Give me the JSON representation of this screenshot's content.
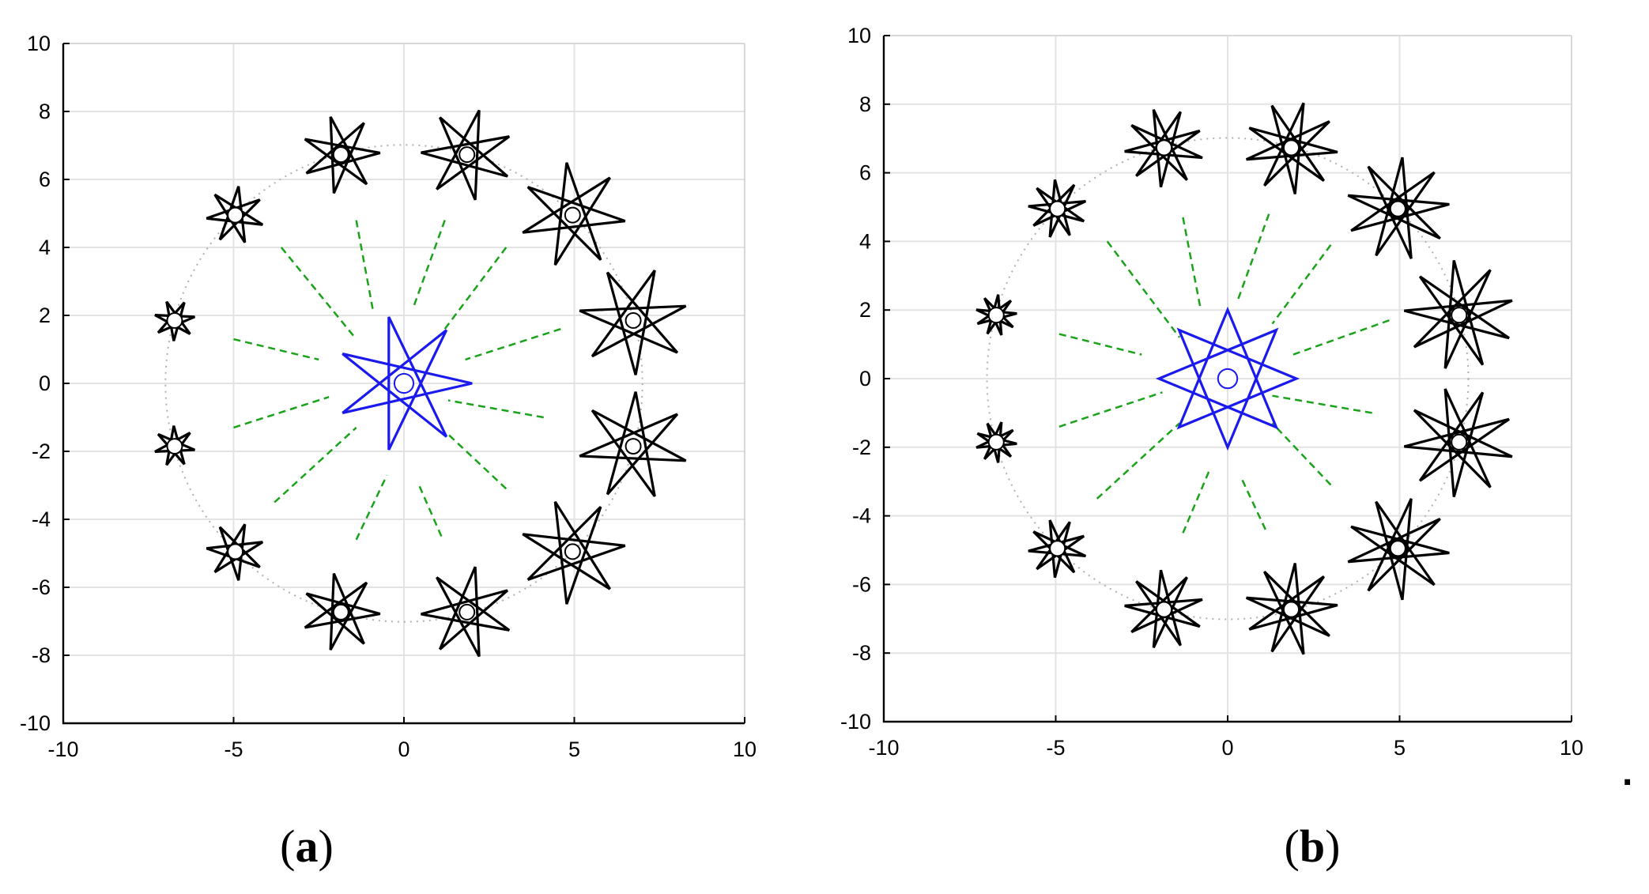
{
  "chart_data": [
    {
      "type": "scatter",
      "panel_label": "a",
      "xlim": [
        -10,
        10
      ],
      "ylim": [
        -10,
        10
      ],
      "x_ticks": [
        -10,
        -5,
        0,
        5,
        10
      ],
      "y_ticks": [
        -10,
        -8,
        -6,
        -4,
        -2,
        0,
        2,
        4,
        6,
        8,
        10
      ],
      "grid": true,
      "reference_circle": {
        "cx": 0,
        "cy": 0,
        "r": 7,
        "style": "dotted",
        "color": "#b0b0b0"
      },
      "center_star": {
        "x": 0,
        "y": 0,
        "points": 7,
        "skip": 3,
        "outer_r": 2.0,
        "rotation_deg": 0,
        "color": "#1a1aee"
      },
      "ring_stars": {
        "points": 7,
        "skip": 3,
        "color": "#000000",
        "hub_r": 0.22,
        "items": [
          {
            "x": 6.73,
            "y": 1.85,
            "r": 1.6
          },
          {
            "x": 4.95,
            "y": 4.95,
            "r": 1.55
          },
          {
            "x": 1.85,
            "y": 6.73,
            "r": 1.35
          },
          {
            "x": -1.85,
            "y": 6.73,
            "r": 1.15
          },
          {
            "x": -4.95,
            "y": 4.95,
            "r": 0.85
          },
          {
            "x": -6.73,
            "y": 1.85,
            "r": 0.6
          },
          {
            "x": -6.73,
            "y": -1.85,
            "r": 0.6
          },
          {
            "x": -4.95,
            "y": -4.95,
            "r": 0.85
          },
          {
            "x": -1.85,
            "y": -6.73,
            "r": 1.15
          },
          {
            "x": 1.85,
            "y": -6.73,
            "r": 1.35
          },
          {
            "x": 4.95,
            "y": -4.95,
            "r": 1.55
          },
          {
            "x": 6.73,
            "y": -1.85,
            "r": 1.6
          }
        ]
      },
      "green_rays": {
        "color": "#1aa31a",
        "style": "dashed",
        "segments": [
          [
            [
              4.6,
              1.6
            ],
            [
              1.8,
              0.7
            ]
          ],
          [
            [
              3.0,
              4.0
            ],
            [
              1.2,
              1.6
            ]
          ],
          [
            [
              1.2,
              4.8
            ],
            [
              0.3,
              2.3
            ]
          ],
          [
            [
              -1.4,
              4.8
            ],
            [
              -0.9,
              2.1
            ]
          ],
          [
            [
              -3.6,
              4.0
            ],
            [
              -1.4,
              1.3
            ]
          ],
          [
            [
              -5.0,
              1.3
            ],
            [
              -2.5,
              0.7
            ]
          ],
          [
            [
              -5.0,
              -1.3
            ],
            [
              -2.2,
              -0.4
            ]
          ],
          [
            [
              -3.8,
              -3.5
            ],
            [
              -1.4,
              -1.3
            ]
          ],
          [
            [
              -1.4,
              -4.6
            ],
            [
              -0.5,
              -2.7
            ]
          ],
          [
            [
              1.1,
              -4.5
            ],
            [
              0.4,
              -2.9
            ]
          ],
          [
            [
              3.0,
              -3.1
            ],
            [
              1.3,
              -1.5
            ]
          ],
          [
            [
              4.1,
              -1.0
            ],
            [
              1.3,
              -0.5
            ]
          ]
        ]
      }
    },
    {
      "type": "scatter",
      "panel_label": "b",
      "xlim": [
        -10,
        10
      ],
      "ylim": [
        -10,
        10
      ],
      "x_ticks": [
        -10,
        -5,
        0,
        5,
        10
      ],
      "y_ticks": [
        -10,
        -8,
        -6,
        -4,
        -2,
        0,
        2,
        4,
        6,
        8,
        10
      ],
      "grid": true,
      "reference_circle": {
        "cx": 0,
        "cy": 0,
        "r": 7,
        "style": "dotted",
        "color": "#b0b0b0"
      },
      "center_star": {
        "x": 0,
        "y": 0,
        "points": 8,
        "skip": 3,
        "outer_r": 2.0,
        "rotation_deg": 90,
        "color": "#1a1aee"
      },
      "ring_stars": {
        "points": 9,
        "skip": 4,
        "color": "#000000",
        "hub_r": 0.22,
        "items": [
          {
            "x": 6.73,
            "y": 1.85,
            "r": 1.6
          },
          {
            "x": 4.95,
            "y": 4.95,
            "r": 1.5
          },
          {
            "x": 1.85,
            "y": 6.73,
            "r": 1.35
          },
          {
            "x": -1.85,
            "y": 6.73,
            "r": 1.15
          },
          {
            "x": -4.95,
            "y": 4.95,
            "r": 0.85
          },
          {
            "x": -6.73,
            "y": 1.85,
            "r": 0.6
          },
          {
            "x": -6.73,
            "y": -1.85,
            "r": 0.6
          },
          {
            "x": -4.95,
            "y": -4.95,
            "r": 0.85
          },
          {
            "x": -1.85,
            "y": -6.73,
            "r": 1.15
          },
          {
            "x": 1.85,
            "y": -6.73,
            "r": 1.35
          },
          {
            "x": 4.95,
            "y": -4.95,
            "r": 1.5
          },
          {
            "x": 6.73,
            "y": -1.85,
            "r": 1.6
          }
        ]
      },
      "green_rays": {
        "color": "#1aa31a",
        "style": "dashed",
        "segments": [
          [
            [
              4.7,
              1.7
            ],
            [
              1.9,
              0.7
            ]
          ],
          [
            [
              3.0,
              3.9
            ],
            [
              1.3,
              1.6
            ]
          ],
          [
            [
              1.2,
              4.8
            ],
            [
              0.3,
              2.3
            ]
          ],
          [
            [
              -1.3,
              4.7
            ],
            [
              -0.8,
              2.1
            ]
          ],
          [
            [
              -3.5,
              4.0
            ],
            [
              -1.4,
              1.2
            ]
          ],
          [
            [
              -4.9,
              1.3
            ],
            [
              -2.5,
              0.7
            ]
          ],
          [
            [
              -4.9,
              -1.4
            ],
            [
              -1.9,
              -0.4
            ]
          ],
          [
            [
              -3.8,
              -3.5
            ],
            [
              -1.4,
              -1.3
            ]
          ],
          [
            [
              -1.3,
              -4.5
            ],
            [
              -0.5,
              -2.6
            ]
          ],
          [
            [
              1.1,
              -4.4
            ],
            [
              0.4,
              -2.9
            ]
          ],
          [
            [
              3.0,
              -3.1
            ],
            [
              1.3,
              -1.3
            ]
          ],
          [
            [
              4.2,
              -1.0
            ],
            [
              1.3,
              -0.5
            ]
          ]
        ]
      }
    }
  ],
  "trailing_mark": "."
}
